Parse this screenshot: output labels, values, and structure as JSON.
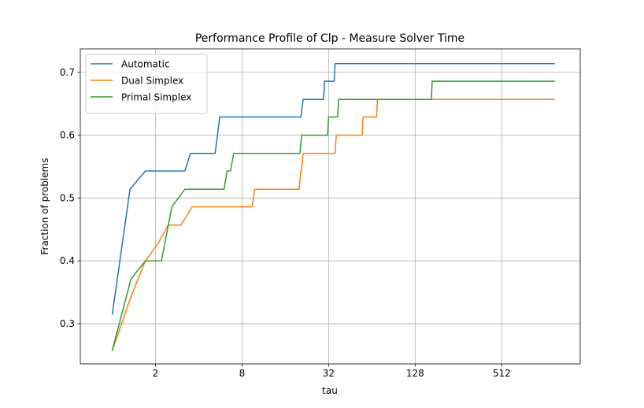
{
  "chart_data": {
    "type": "line",
    "title": "Performance Profile of Clp - Measure Solver Time",
    "xlabel": "tau",
    "ylabel": "Fraction of problems",
    "x_scale": "log2",
    "xlim": [
      0.6,
      1800
    ],
    "ylim": [
      0.236,
      0.7375
    ],
    "x_ticks": [
      2,
      8,
      32,
      128,
      512
    ],
    "x_tick_labels": [
      "2",
      "8",
      "32",
      "128",
      "512"
    ],
    "y_ticks": [
      0.3,
      0.4,
      0.5,
      0.6,
      0.7
    ],
    "y_tick_labels": [
      "0.3",
      "0.4",
      "0.5",
      "0.6",
      "0.7"
    ],
    "grid": true,
    "legend_position": "upper-left",
    "series": [
      {
        "name": "Automatic",
        "color": "#1f77b4",
        "points": [
          [
            1,
            0.314
          ],
          [
            1.33,
            0.514
          ],
          [
            1.7,
            0.543
          ],
          [
            3.2,
            0.543
          ],
          [
            3.5,
            0.571
          ],
          [
            5.2,
            0.571
          ],
          [
            5.6,
            0.629
          ],
          [
            20.5,
            0.629
          ],
          [
            21.3,
            0.657
          ],
          [
            29.5,
            0.657
          ],
          [
            30.0,
            0.686
          ],
          [
            35.0,
            0.686
          ],
          [
            35.5,
            0.714
          ],
          [
            1200,
            0.714
          ]
        ]
      },
      {
        "name": "Dual Simplex",
        "color": "#ff7f0e",
        "points": [
          [
            1,
            0.257
          ],
          [
            1.35,
            0.343
          ],
          [
            1.7,
            0.4
          ],
          [
            2.1,
            0.429
          ],
          [
            2.45,
            0.457
          ],
          [
            3.0,
            0.457
          ],
          [
            3.6,
            0.486
          ],
          [
            9.4,
            0.486
          ],
          [
            9.8,
            0.514
          ],
          [
            20.0,
            0.514
          ],
          [
            20.5,
            0.543
          ],
          [
            20.7,
            0.543
          ],
          [
            21.3,
            0.571
          ],
          [
            35.5,
            0.571
          ],
          [
            36.2,
            0.6
          ],
          [
            55.0,
            0.6
          ],
          [
            55.5,
            0.629
          ],
          [
            69.0,
            0.629
          ],
          [
            70.0,
            0.657
          ],
          [
            1200,
            0.657
          ]
        ]
      },
      {
        "name": "Primal Simplex",
        "color": "#2ca02c",
        "points": [
          [
            1,
            0.257
          ],
          [
            1.35,
            0.371
          ],
          [
            1.7,
            0.4
          ],
          [
            2.2,
            0.4
          ],
          [
            2.6,
            0.486
          ],
          [
            3.2,
            0.514
          ],
          [
            6.0,
            0.514
          ],
          [
            6.3,
            0.543
          ],
          [
            6.65,
            0.543
          ],
          [
            7.0,
            0.571
          ],
          [
            20.2,
            0.571
          ],
          [
            20.8,
            0.6
          ],
          [
            31.5,
            0.6
          ],
          [
            32.0,
            0.629
          ],
          [
            37.0,
            0.629
          ],
          [
            37.5,
            0.657
          ],
          [
            166,
            0.657
          ],
          [
            168,
            0.686
          ],
          [
            1200,
            0.686
          ]
        ]
      }
    ]
  }
}
